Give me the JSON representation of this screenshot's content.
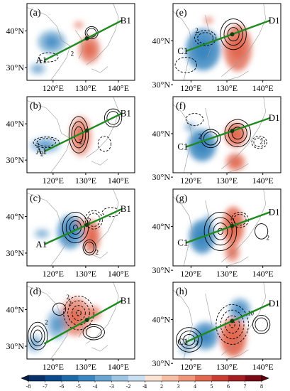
{
  "panels": [
    {
      "id": "a",
      "label": "(a)",
      "line_start": "A1",
      "line_end": "B1"
    },
    {
      "id": "b",
      "label": "(b)",
      "line_start": "A1",
      "line_end": "B1"
    },
    {
      "id": "c",
      "label": "(c)",
      "line_start": "A1",
      "line_end": "B1"
    },
    {
      "id": "d",
      "label": "(d)",
      "line_start": "",
      "line_end": "B1"
    },
    {
      "id": "e",
      "label": "(e)",
      "line_start": "C1",
      "line_end": "D1"
    },
    {
      "id": "f",
      "label": "(f)",
      "line_start": "C1",
      "line_end": "D1"
    },
    {
      "id": "g",
      "label": "(g)",
      "line_start": "C1",
      "line_end": "D1"
    },
    {
      "id": "h",
      "label": "(h)",
      "line_start": "C1",
      "line_end": "D1"
    }
  ],
  "left_axes": {
    "lat_ticks": [
      "40°N",
      "30°N"
    ],
    "lon_ticks": [
      "120°E",
      "130°E",
      "140°E"
    ]
  },
  "right_axes": {
    "lat_ticks": [
      "40°N",
      "30°N"
    ],
    "lon_ticks": [
      "120°E",
      "130°E",
      "140°E"
    ]
  },
  "contour_labels": {
    "a": [
      "2"
    ],
    "b": [
      "2",
      "2",
      "2"
    ],
    "c": [
      "2",
      "2"
    ],
    "d": [
      "2",
      "2",
      "2"
    ],
    "e": [
      "2"
    ],
    "f": [
      "2",
      "2"
    ],
    "g": [
      "2"
    ],
    "h": [
      "2",
      "10"
    ]
  },
  "colorbar": {
    "ticks": [
      "-8",
      "-7",
      "-6",
      "-5",
      "-4",
      "-3",
      "-2",
      "-1",
      "1",
      "2",
      "3",
      "4",
      "5",
      "6",
      "7",
      "8"
    ],
    "colors": [
      "#08306b",
      "#0b4a8f",
      "#1c6aa8",
      "#3a86c0",
      "#69a5d2",
      "#9cc6e3",
      "#c9def0",
      "#fbe3d4",
      "#f6bfa4",
      "#ee9677",
      "#e1674f",
      "#c93d32",
      "#a51e22",
      "#7b0a17"
    ],
    "neg_extend_color": "#06204a",
    "pos_extend_color": "#67000d"
  },
  "styles": {
    "section_line": "#1f8a1f",
    "coast": "#999999",
    "blue_fill": "#3a86c0",
    "red_fill": "#e1674f"
  }
}
